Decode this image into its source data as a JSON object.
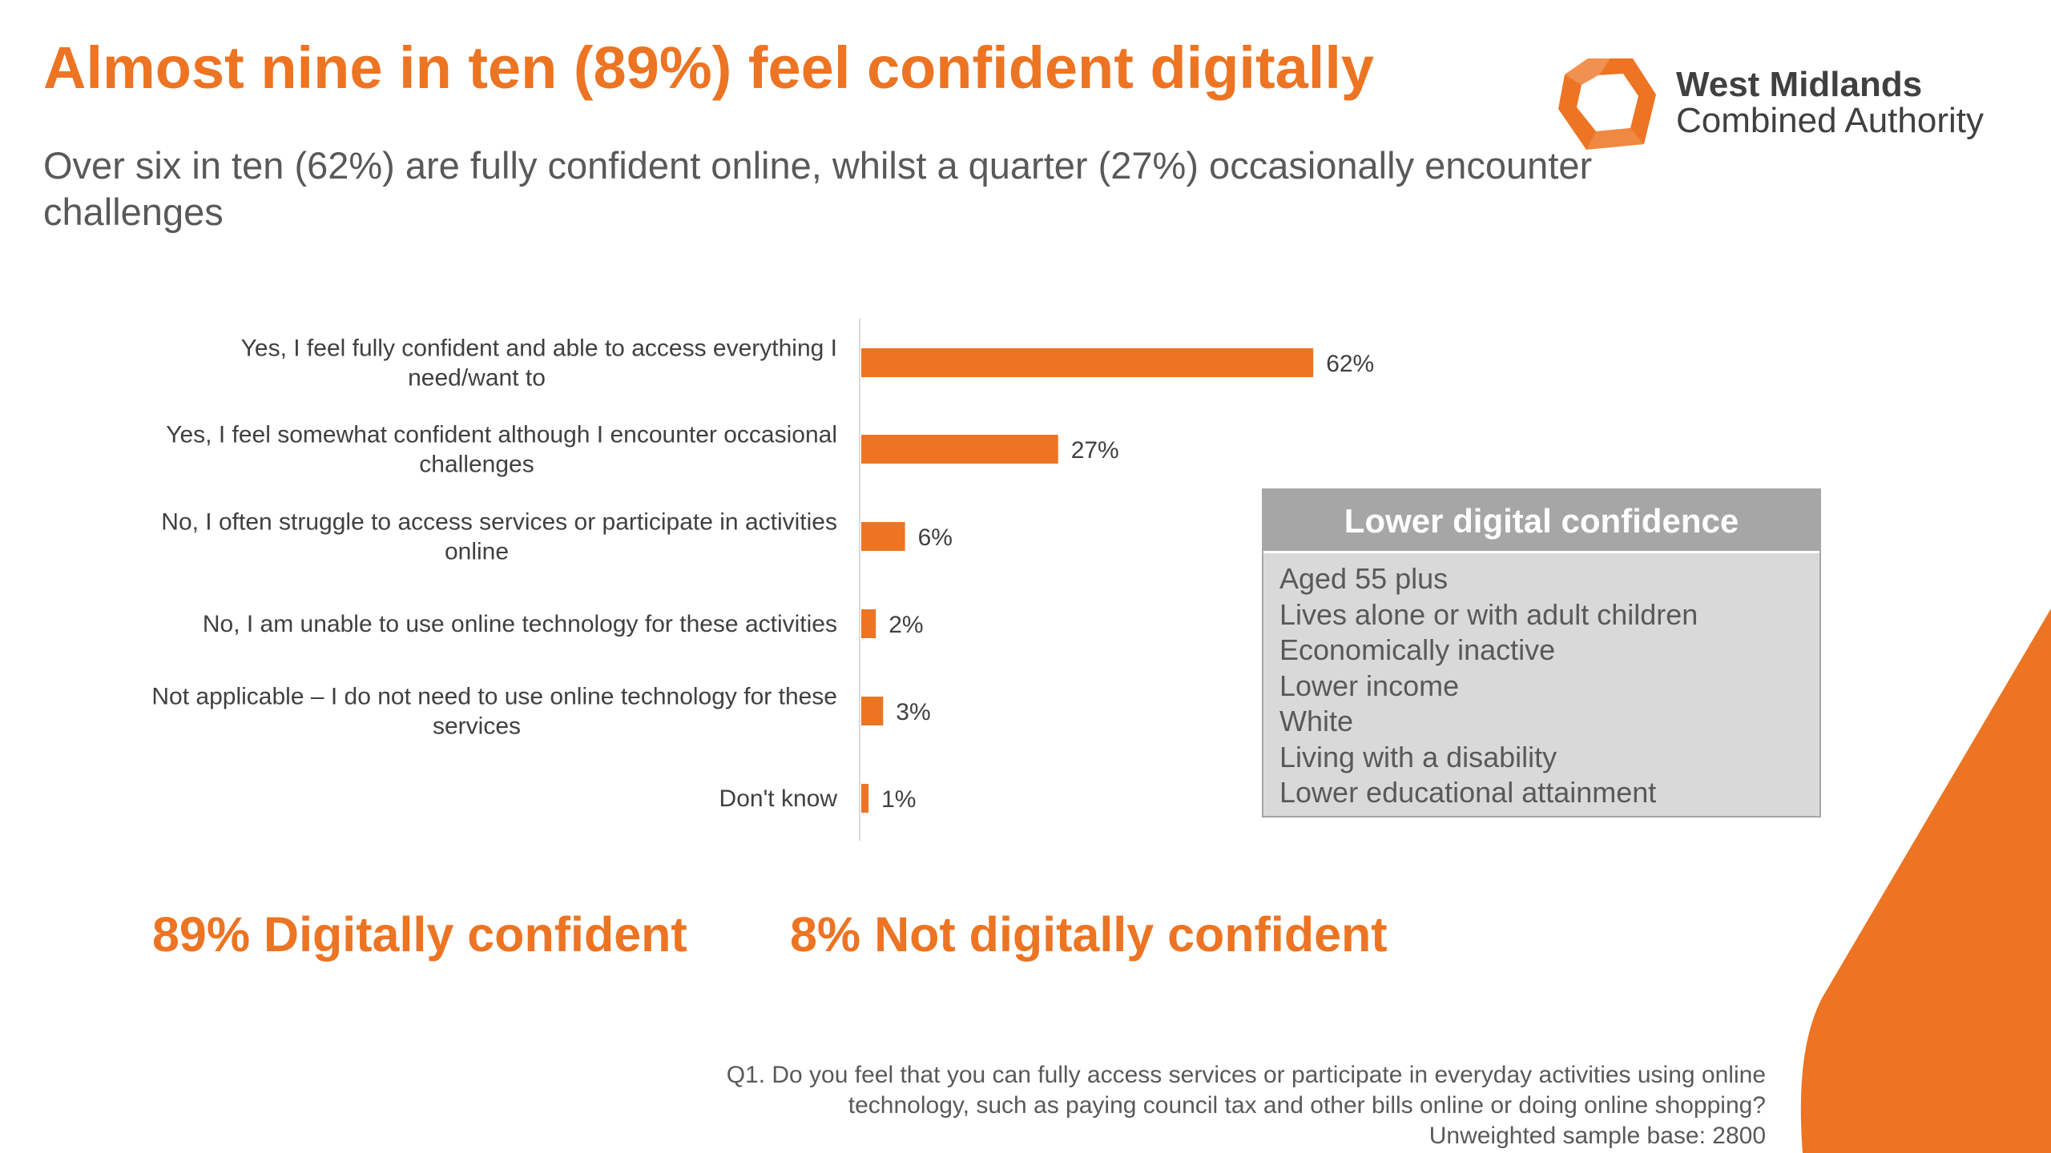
{
  "title": "Almost nine in ten (89%) feel confident digitally",
  "subtitle": "Over six in ten (62%) are fully confident online, whilst a quarter (27%) occasionally encounter challenges",
  "logo": {
    "line1": "West Midlands",
    "line2": "Combined Authority"
  },
  "colors": {
    "accent": "#ec7423",
    "callout_header": "#a6a6a6",
    "callout_body": "#d9d9d9",
    "text": "#595959"
  },
  "chart_data": {
    "type": "bar",
    "orientation": "horizontal",
    "categories": [
      [
        "Yes, I feel fully confident and able to access everything I",
        "need/want to"
      ],
      [
        "Yes, I feel somewhat confident although I encounter occasional",
        "challenges"
      ],
      [
        "No, I often struggle to access services or participate in activities",
        "online"
      ],
      [
        "No, I am unable to use online technology for these activities"
      ],
      [
        "Not applicable – I do not need to use online technology for these",
        "services"
      ],
      [
        "Don't know"
      ]
    ],
    "values": [
      62,
      27,
      6,
      2,
      3,
      1
    ],
    "data_labels": [
      "62%",
      "27%",
      "6%",
      "2%",
      "3%",
      "1%"
    ],
    "unit": "%",
    "xlim": [
      0,
      100
    ],
    "grid": false,
    "bar_color": "#ec7423"
  },
  "callout": {
    "title": "Lower digital confidence",
    "items": [
      "Aged 55 plus",
      "Lives alone or with adult children",
      "Economically inactive",
      "Lower income",
      "White",
      "Living with a disability",
      "Lower educational attainment"
    ]
  },
  "summary": {
    "confident": "89% Digitally confident",
    "not_confident": "8% Not digitally confident"
  },
  "footnote": {
    "line1": "Q1. Do you feel that you can fully access services or participate in everyday activities using online",
    "line2": "technology, such as paying council tax and other bills online or doing online shopping?",
    "line3": "Unweighted sample base: 2800"
  }
}
